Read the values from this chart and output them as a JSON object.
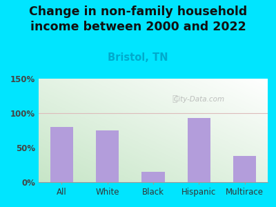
{
  "title": "Change in non-family household\nincome between 2000 and 2022",
  "subtitle": "Bristol, TN",
  "categories": [
    "All",
    "White",
    "Black",
    "Hispanic",
    "Multirace"
  ],
  "values": [
    80,
    75,
    15,
    93,
    38
  ],
  "bar_color": "#b39ddb",
  "title_fontsize": 12.5,
  "subtitle_fontsize": 10.5,
  "subtitle_color": "#00aacc",
  "title_color": "#111111",
  "background_outer": "#00e5ff",
  "background_inner_left": "#c8e6c9",
  "background_inner_right": "#f0fff0",
  "ylim": [
    0,
    150
  ],
  "yticks": [
    0,
    50,
    100,
    150
  ],
  "ytick_labels": [
    "0%",
    "50%",
    "100%",
    "150%"
  ],
  "grid_color": "#ddbbbb",
  "watermark": "City-Data.com"
}
